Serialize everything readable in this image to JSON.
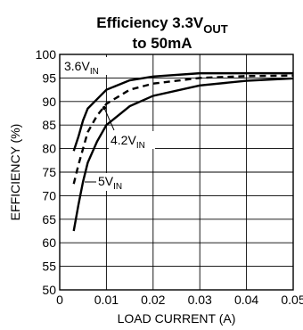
{
  "chart_data": {
    "type": "line",
    "title": {
      "line1_main": "Efficiency 3.3V",
      "line1_sub": "OUT",
      "line2": "to 50mA"
    },
    "xlabel": "LOAD CURRENT (A)",
    "ylabel": "EFFICIENCY (%)",
    "xlim": [
      0,
      0.05
    ],
    "ylim": [
      50,
      100
    ],
    "x_ticks": [
      0,
      0.01,
      0.02,
      0.03,
      0.04,
      0.05
    ],
    "x_tick_labels": [
      "0",
      "0.01",
      "0.02",
      "0.03",
      "0.04",
      "0.05"
    ],
    "y_ticks": [
      50,
      55,
      60,
      65,
      70,
      75,
      80,
      85,
      90,
      95,
      100
    ],
    "y_tick_labels": [
      "50",
      "55",
      "60",
      "65",
      "70",
      "75",
      "80",
      "85",
      "90",
      "95",
      "100"
    ],
    "grid": true,
    "series": [
      {
        "name": "3.6V",
        "name_sub": "IN",
        "line_style": "solid",
        "x": [
          0.003,
          0.004,
          0.005,
          0.006,
          0.008,
          0.01,
          0.015,
          0.02,
          0.03,
          0.04,
          0.05
        ],
        "y": [
          79.5,
          82.5,
          86,
          88.5,
          90.5,
          92.5,
          94.5,
          95.3,
          96,
          96,
          96
        ]
      },
      {
        "name": "4.2V",
        "name_sub": "IN",
        "line_style": "dashed",
        "x": [
          0.003,
          0.004,
          0.005,
          0.006,
          0.008,
          0.01,
          0.015,
          0.02,
          0.03,
          0.04,
          0.05
        ],
        "y": [
          72.5,
          76.5,
          80,
          83.5,
          87,
          89.5,
          92.5,
          93.8,
          95,
          95.4,
          95.5
        ]
      },
      {
        "name": "5V",
        "name_sub": "IN",
        "line_style": "solid",
        "x": [
          0.003,
          0.004,
          0.005,
          0.006,
          0.008,
          0.01,
          0.015,
          0.02,
          0.03,
          0.04,
          0.05
        ],
        "y": [
          62.5,
          68,
          73,
          77,
          81.5,
          85,
          89,
          91.2,
          93.4,
          94.4,
          94.9
        ]
      }
    ]
  }
}
